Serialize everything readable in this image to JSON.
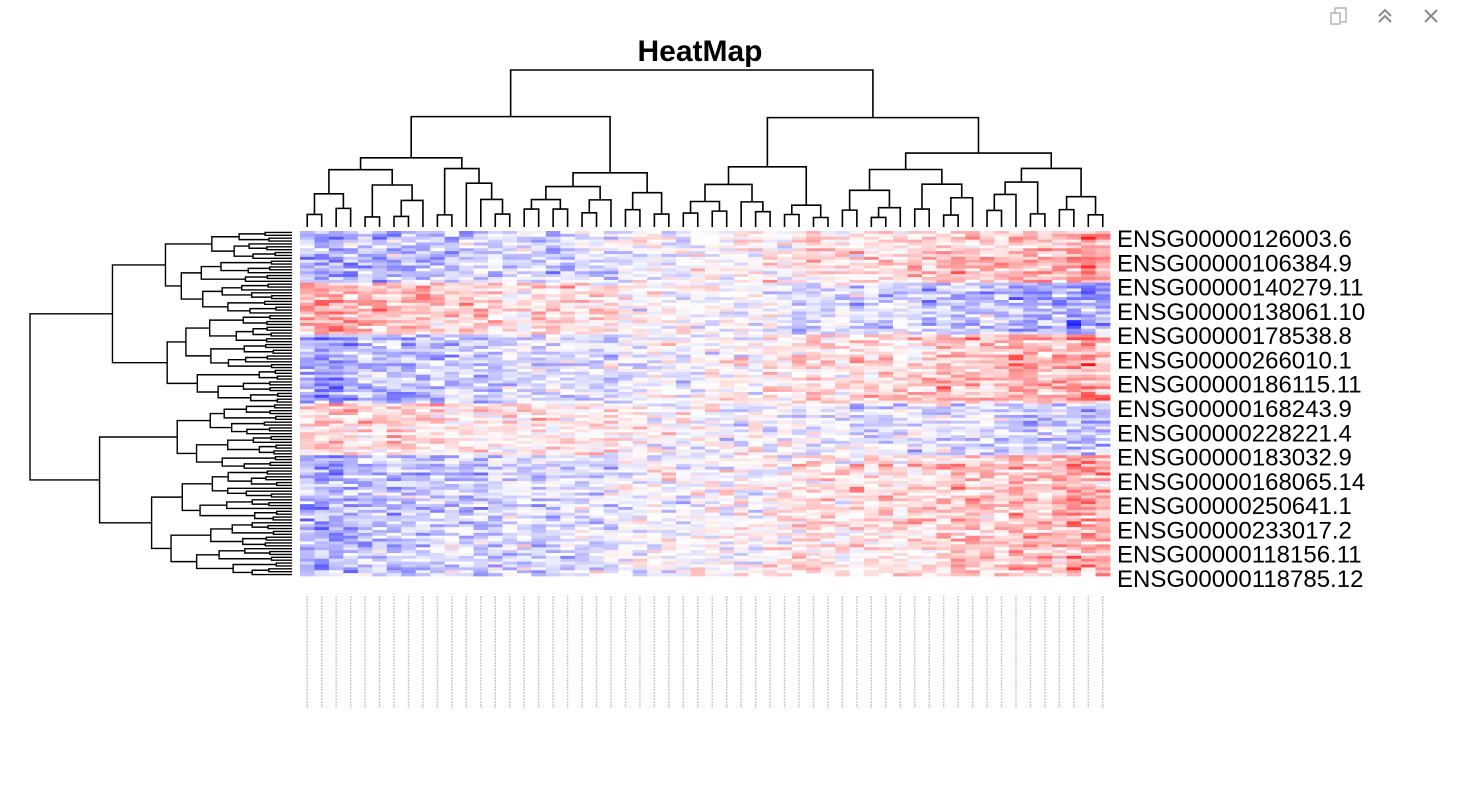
{
  "toolbar": {
    "items": [
      {
        "name": "popout-icon"
      },
      {
        "name": "collapse-icon"
      },
      {
        "name": "close-icon"
      }
    ]
  },
  "colors": {
    "low": "#0000ff",
    "mid": "#ffffff",
    "high": "#ff0000",
    "tree": "#000000",
    "label": "#000000"
  },
  "chart_data": {
    "type": "heatmap",
    "title": "HeatMap",
    "n_rows": 120,
    "n_cols": 56,
    "value_range": [
      -2,
      2
    ],
    "color_scale": "blue-white-red",
    "row_dendrogram": true,
    "col_dendrogram": true,
    "row_labels": [
      "ENSG00000126003.6",
      "ENSG00000106384.9",
      "ENSG00000140279.11",
      "ENSG00000138061.10",
      "ENSG00000178538.8",
      "ENSG00000266010.1",
      "ENSG00000186115.11",
      "ENSG00000168243.9",
      "ENSG00000228221.4",
      "ENSG00000183032.9",
      "ENSG00000168065.14",
      "ENSG00000250641.1",
      "ENSG00000233017.2",
      "ENSG00000118156.11",
      "ENSG00000118785.12"
    ]
  }
}
